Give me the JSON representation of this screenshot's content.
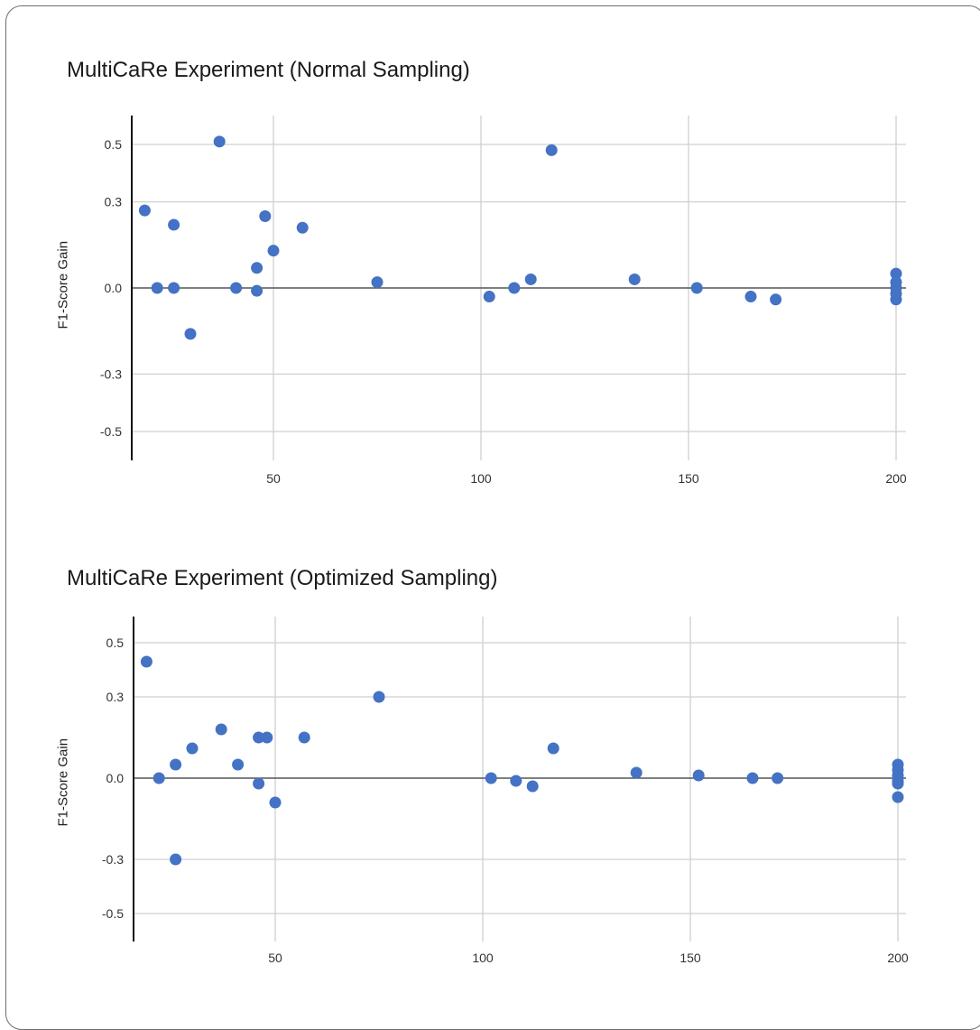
{
  "chart_data": [
    {
      "type": "scatter",
      "title": "MultiCaRe Experiment (Normal Sampling)",
      "xlabel": "",
      "ylabel": "F1-Score Gain",
      "xlim": [
        17,
        202
      ],
      "ylim": [
        -0.6,
        0.6
      ],
      "xticks": [
        50,
        100,
        150,
        200
      ],
      "yticks": [
        0.5,
        0.3,
        0.0,
        -0.3,
        -0.5
      ],
      "ytick_labels": [
        "0.5",
        "0.3",
        "0.0",
        "-0.3",
        "-0.5"
      ],
      "grid": true,
      "point_color": "#4472c4",
      "points": [
        {
          "x": 19,
          "y": 0.27
        },
        {
          "x": 22,
          "y": 0.0
        },
        {
          "x": 26,
          "y": 0.0
        },
        {
          "x": 26,
          "y": 0.22
        },
        {
          "x": 30,
          "y": -0.16
        },
        {
          "x": 37,
          "y": 0.51
        },
        {
          "x": 41,
          "y": 0.0
        },
        {
          "x": 46,
          "y": 0.07
        },
        {
          "x": 46,
          "y": -0.01
        },
        {
          "x": 48,
          "y": 0.25
        },
        {
          "x": 50,
          "y": 0.13
        },
        {
          "x": 57,
          "y": 0.21
        },
        {
          "x": 75,
          "y": 0.02
        },
        {
          "x": 102,
          "y": -0.03
        },
        {
          "x": 108,
          "y": 0.0
        },
        {
          "x": 112,
          "y": 0.03
        },
        {
          "x": 117,
          "y": 0.48
        },
        {
          "x": 137,
          "y": 0.03
        },
        {
          "x": 152,
          "y": 0.0
        },
        {
          "x": 165,
          "y": -0.03
        },
        {
          "x": 171,
          "y": -0.04
        },
        {
          "x": 200,
          "y": 0.05
        },
        {
          "x": 200,
          "y": 0.02
        },
        {
          "x": 200,
          "y": 0.0
        },
        {
          "x": 200,
          "y": -0.02
        },
        {
          "x": 200,
          "y": -0.04
        }
      ]
    },
    {
      "type": "scatter",
      "title": "MultiCaRe Experiment (Optimized Sampling)",
      "xlabel": "",
      "ylabel": "F1-Score Gain",
      "xlim": [
        17,
        202
      ],
      "ylim": [
        -0.6,
        0.6
      ],
      "xticks": [
        50,
        100,
        150,
        200
      ],
      "yticks": [
        0.5,
        0.3,
        0.0,
        -0.3,
        -0.5
      ],
      "ytick_labels": [
        "0.5",
        "0.3",
        "0.0",
        "-0.3",
        "-0.5"
      ],
      "grid": true,
      "point_color": "#4472c4",
      "points": [
        {
          "x": 19,
          "y": 0.43
        },
        {
          "x": 22,
          "y": 0.0
        },
        {
          "x": 26,
          "y": 0.05
        },
        {
          "x": 26,
          "y": -0.3
        },
        {
          "x": 30,
          "y": 0.11
        },
        {
          "x": 37,
          "y": 0.18
        },
        {
          "x": 41,
          "y": 0.05
        },
        {
          "x": 46,
          "y": 0.15
        },
        {
          "x": 46,
          "y": -0.02
        },
        {
          "x": 48,
          "y": 0.15
        },
        {
          "x": 50,
          "y": -0.09
        },
        {
          "x": 57,
          "y": 0.15
        },
        {
          "x": 75,
          "y": 0.3
        },
        {
          "x": 102,
          "y": 0.0
        },
        {
          "x": 108,
          "y": -0.01
        },
        {
          "x": 112,
          "y": -0.03
        },
        {
          "x": 117,
          "y": 0.11
        },
        {
          "x": 137,
          "y": 0.02
        },
        {
          "x": 152,
          "y": 0.01
        },
        {
          "x": 165,
          "y": 0.0
        },
        {
          "x": 171,
          "y": 0.0
        },
        {
          "x": 200,
          "y": 0.05
        },
        {
          "x": 200,
          "y": 0.03
        },
        {
          "x": 200,
          "y": 0.01
        },
        {
          "x": 200,
          "y": -0.01
        },
        {
          "x": 200,
          "y": -0.02
        },
        {
          "x": 200,
          "y": -0.07
        }
      ]
    }
  ]
}
